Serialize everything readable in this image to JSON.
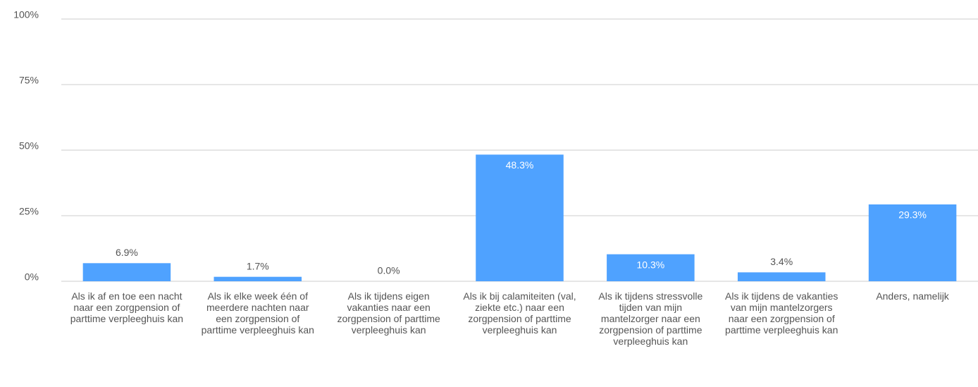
{
  "chart_data": {
    "type": "bar",
    "categories": [
      "Als ik af en toe een nacht naar een zorgpension of parttime verpleeghuis kan",
      "Als ik elke week één of meerdere nachten naar een zorgpension of parttime verpleeghuis kan",
      "Als ik tijdens eigen vakanties naar een zorgpension of parttime verpleeghuis kan",
      "Als ik bij calamiteiten (val, ziekte etc.) naar een zorgpension of parttime verpleeghuis kan",
      "Als ik tijdens stressvolle tijden van mijn mantelzorger naar een zorgpension of parttime verpleeghuis kan",
      "Als ik tijdens de vakanties van mijn mantelzorgers naar een zorgpension of parttime verpleeghuis kan",
      "Anders, namelijk"
    ],
    "values": [
      6.9,
      1.7,
      0.0,
      48.3,
      10.3,
      3.4,
      29.3
    ],
    "value_labels": [
      "6.9%",
      "1.7%",
      "0.0%",
      "48.3%",
      "10.3%",
      "3.4%",
      "29.3%"
    ],
    "color": "#4fa2ff",
    "ylim": [
      0,
      100
    ],
    "yticks": [
      {
        "value": 0,
        "label": "0%"
      },
      {
        "value": 25,
        "label": "25%"
      },
      {
        "value": 50,
        "label": "50%"
      },
      {
        "value": 75,
        "label": "75%"
      },
      {
        "value": 100,
        "label": "100%"
      }
    ],
    "grid": true
  }
}
